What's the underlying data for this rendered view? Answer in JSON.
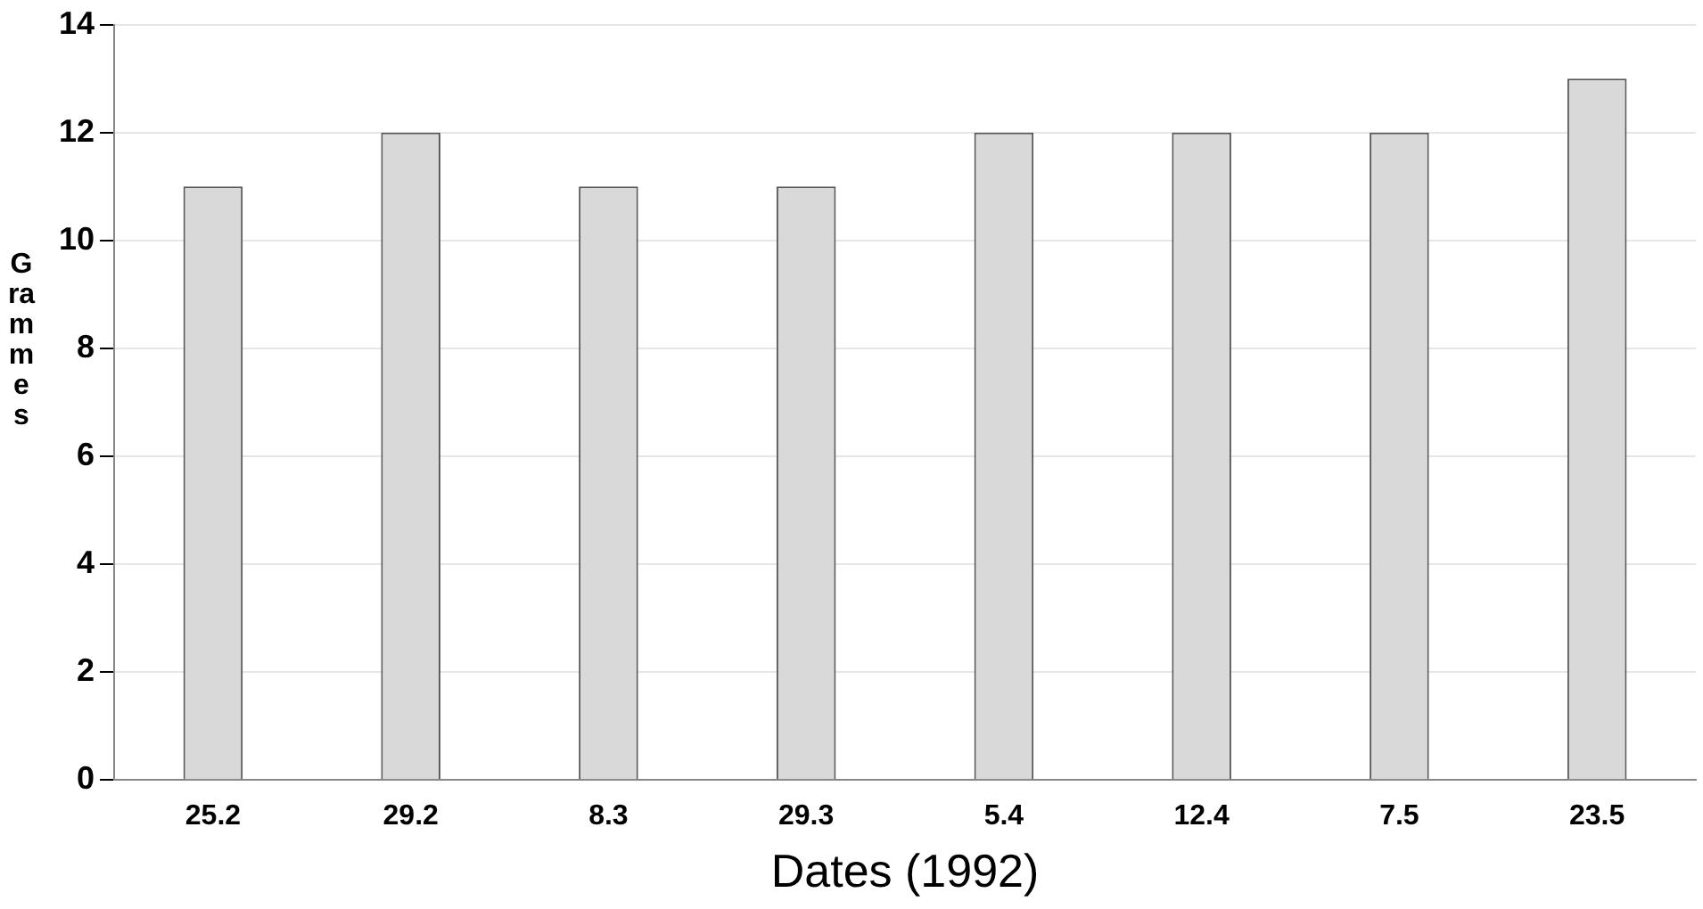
{
  "chart_data": {
    "type": "bar",
    "xlabel": "Dates (1992)",
    "ylabel": "Grammes",
    "categories": [
      "25.2",
      "29.2",
      "8.3",
      "29.3",
      "5.4",
      "12.4",
      "7.5",
      "23.5"
    ],
    "values": [
      11,
      12,
      11,
      11,
      12,
      12,
      12,
      13
    ],
    "color": "#d9d9d9",
    "ylim": [
      0,
      14
    ],
    "yticks": [
      0,
      2,
      4,
      6,
      8,
      10,
      12,
      14
    ],
    "grid": "y",
    "legend": false
  }
}
